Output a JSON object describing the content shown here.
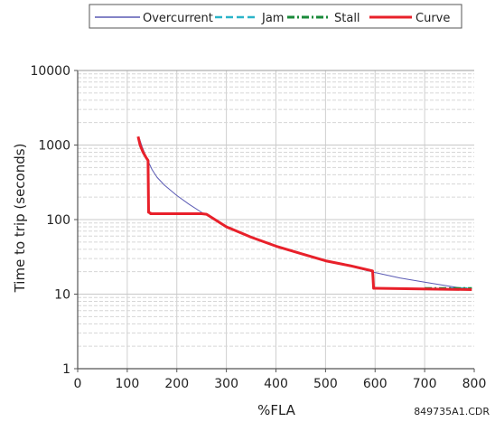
{
  "chart_data": {
    "type": "line",
    "xlabel": "%FLA",
    "ylabel": "Time to trip (seconds)",
    "xlim": [
      0,
      800
    ],
    "ylim": [
      1,
      10000
    ],
    "yscale": "log",
    "grid": true,
    "legend_position": "top-center",
    "figure_id": "849735A1.CDR",
    "x_ticks": [
      "0",
      "100",
      "200",
      "300",
      "400",
      "500",
      "600",
      "700",
      "800"
    ],
    "y_ticks": [
      "1",
      "10",
      "100",
      "1000",
      "10000"
    ],
    "series": [
      {
        "name": "Overcurrent",
        "color": "#5a5ab4",
        "style": "solid-thin",
        "x": [
          125,
          130,
          140,
          150,
          160,
          175,
          200,
          225,
          250,
          275,
          300,
          350,
          400,
          450,
          500,
          550,
          600,
          650,
          700,
          750,
          790
        ],
        "y": [
          1200,
          950,
          650,
          470,
          370,
          290,
          210,
          160,
          125,
          100,
          80,
          58,
          44,
          35,
          28,
          23.5,
          19.5,
          16.5,
          14.5,
          12.8,
          11.6
        ]
      },
      {
        "name": "Jam",
        "color": "#2ab4c8",
        "style": "dashed",
        "x": [
          750,
          795
        ],
        "y": [
          12,
          12
        ]
      },
      {
        "name": "Stall",
        "color": "#1a8a3a",
        "style": "dash-dot",
        "x": [
          700,
          795
        ],
        "y": [
          12,
          12
        ]
      },
      {
        "name": "Curve",
        "color": "#e8202a",
        "style": "solid-thick",
        "x": [
          122,
          126,
          132,
          138,
          142,
          143,
          147,
          147,
          250,
          260,
          300,
          350,
          400,
          450,
          500,
          550,
          595,
          597,
          600,
          795
        ],
        "y": [
          1300,
          1000,
          800,
          680,
          620,
          125,
          122,
          120,
          120,
          118,
          80,
          58,
          44,
          35,
          28,
          24,
          20.5,
          12,
          12,
          11.5
        ]
      }
    ]
  }
}
